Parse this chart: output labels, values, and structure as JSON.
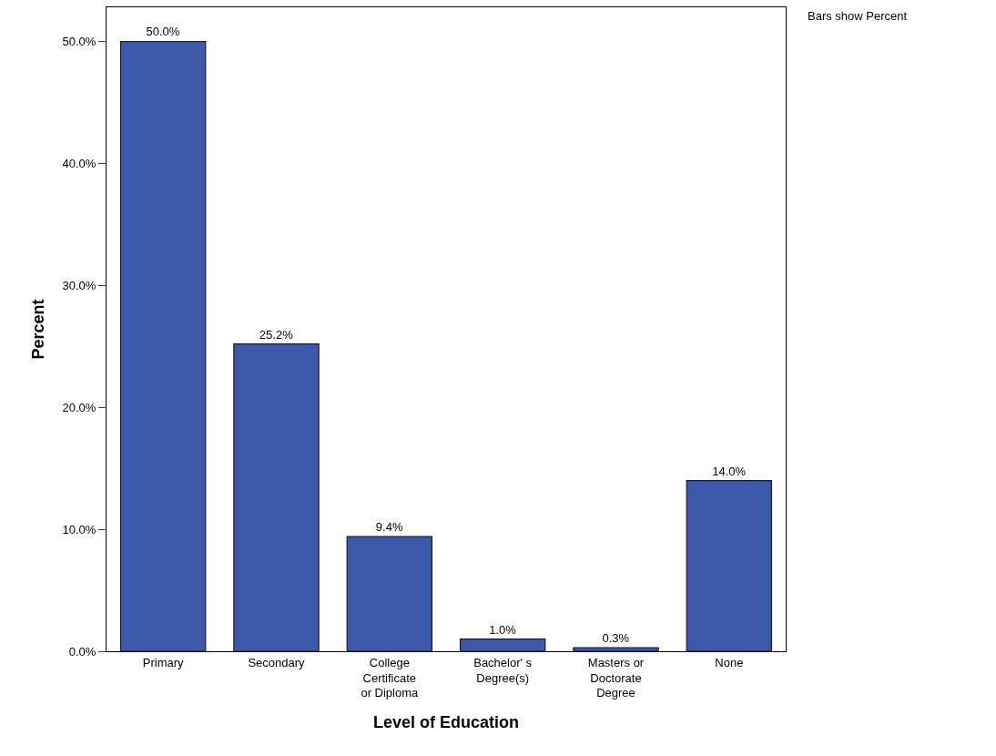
{
  "chart_data": {
    "type": "bar",
    "xlabel": "Level of Education",
    "ylabel": "Percent",
    "categories": [
      "Primary",
      "Secondary",
      "College\nCertificate\nor Diploma",
      "Bachelor' s\nDegree(s)",
      "Masters or\nDoctorate\nDegree",
      "None"
    ],
    "values": [
      50.0,
      25.2,
      9.4,
      1.0,
      0.3,
      14.0
    ],
    "value_labels": [
      "50.0%",
      "25.2%",
      "9.4%",
      "1.0%",
      "0.3%",
      "14.0%"
    ],
    "color": "#3c58a8",
    "ylim": [
      0,
      52.8
    ],
    "yticks": [
      {
        "value": 0,
        "label": "0.0%"
      },
      {
        "value": 10,
        "label": "10.0%"
      },
      {
        "value": 20,
        "label": "20.0%"
      },
      {
        "value": 30,
        "label": "30.0%"
      },
      {
        "value": 40,
        "label": "40.0%"
      },
      {
        "value": 50,
        "label": "50.0%"
      }
    ],
    "annotations": [
      "Bars show Percent"
    ]
  }
}
